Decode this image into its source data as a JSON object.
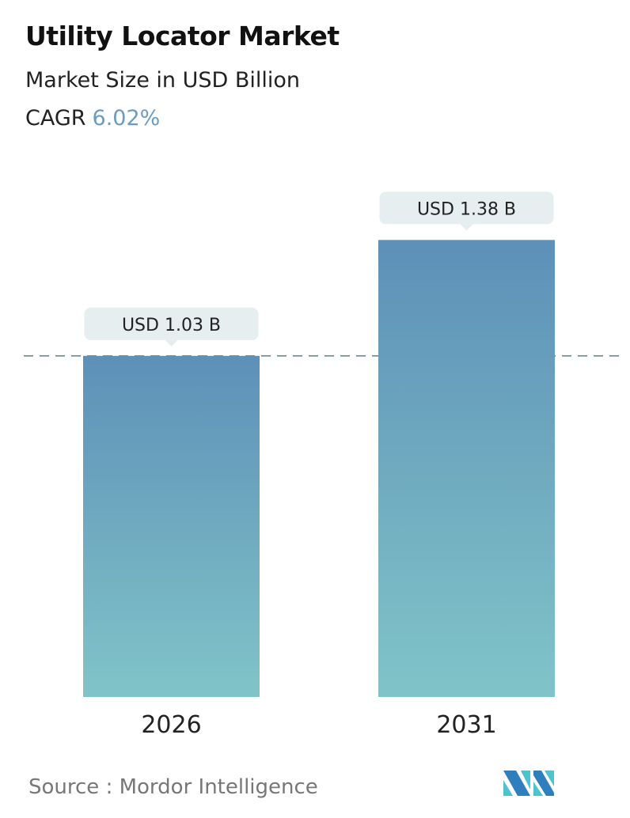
{
  "header": {
    "title": "Utility Locator Market",
    "subtitle": "Market Size in USD Billion",
    "cagr_label": "CAGR",
    "cagr_value": "6.02%"
  },
  "chart_data": {
    "type": "bar",
    "categories": [
      "2026",
      "2031"
    ],
    "values": [
      1.03,
      1.38
    ],
    "data_labels": [
      "USD 1.03 B",
      "USD 1.38 B"
    ],
    "title": "Utility Locator Market",
    "ylabel": "Market Size in USD Billion",
    "reference_line": 1.03,
    "grid": false,
    "colors": {
      "bar_top": "#5e90b8",
      "bar_bottom": "#80c4c8",
      "label_bg": "#e6eef0",
      "dashed_line": "#5b7f95"
    }
  },
  "footer": {
    "source": "Source :  Mordor Intelligence",
    "logo_text": "MI"
  }
}
